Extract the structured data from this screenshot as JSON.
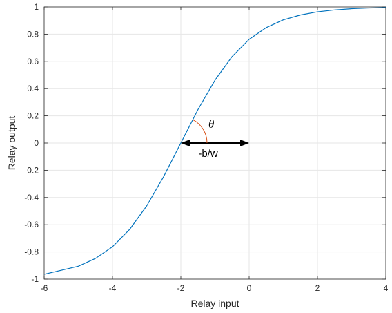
{
  "chart_data": {
    "type": "line",
    "title": "",
    "xlabel": "Relay input",
    "ylabel": "Relay output",
    "xlim": [
      -6,
      4
    ],
    "ylim": [
      -1,
      1
    ],
    "xticks": [
      -6,
      -4,
      -2,
      0,
      2,
      4
    ],
    "yticks": [
      -1,
      -0.8,
      -0.6,
      -0.4,
      -0.2,
      0,
      0.2,
      0.4,
      0.6,
      0.8,
      1
    ],
    "xtick_labels": [
      "-6",
      "-4",
      "-2",
      "0",
      "2",
      "4"
    ],
    "ytick_labels": [
      "-1",
      "-0.8",
      "-0.6",
      "-0.4",
      "-0.2",
      "0",
      "0.2",
      "0.4",
      "0.6",
      "0.8",
      "1"
    ],
    "grid": true,
    "series": [
      {
        "color": "#0072BD",
        "x": [
          -6,
          -5.5,
          -5,
          -4.5,
          -4,
          -3.5,
          -3,
          -2.5,
          -2,
          -1.5,
          -1,
          -0.5,
          0,
          0.5,
          1,
          1.5,
          2,
          2.5,
          3,
          3.5,
          4
        ],
        "y": [
          -0.964,
          -0.935,
          -0.905,
          -0.848,
          -0.762,
          -0.635,
          -0.462,
          -0.245,
          0,
          0.245,
          0.462,
          0.635,
          0.762,
          0.848,
          0.905,
          0.941,
          0.964,
          0.978,
          0.987,
          0.992,
          0.995
        ]
      }
    ],
    "annotations": {
      "arrow_label": "-b/w",
      "arrow_from_x": -2,
      "arrow_to_x": 0,
      "arrow_y": 0,
      "angle_symbol": "θ",
      "angle_color": "#D95319",
      "arrow_color": "#000000"
    }
  }
}
